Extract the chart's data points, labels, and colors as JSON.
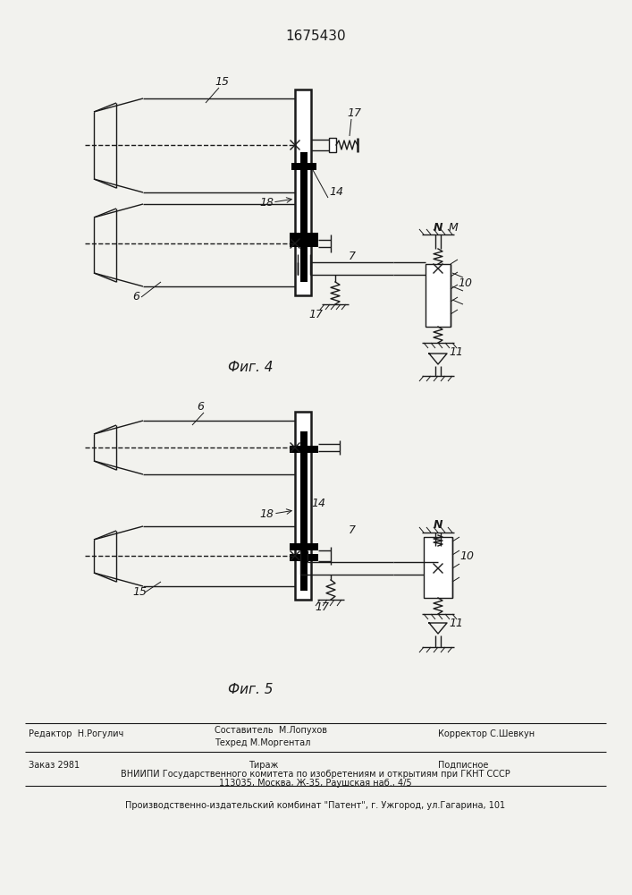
{
  "title": "1675430",
  "fig4_label": "Фиг. 4",
  "fig5_label": "Фиг. 5",
  "background_color": "#f2f2ee",
  "line_color": "#1a1a1a",
  "footer_line1a": "Редактор  Н.Рогулич",
  "footer_line1b": "Составитель  М.Лопухов",
  "footer_line1c": "Техред М.Моргентал",
  "footer_line1d": "Корректор С.Шевкун",
  "footer_line2a": "Заказ 2981",
  "footer_line2b": "Тираж",
  "footer_line2c": "Подписное",
  "footer_line3": "ВНИИПИ Государственного комитета по изобретениям и открытиям при ГКНТ СССР",
  "footer_line4": "113035, Москва, Ж-35, Раушская наб., 4/5",
  "footer_line5": "Производственно-издательский комбинат \"Патент\", г. Ужгород, ул.Гагарина, 101"
}
